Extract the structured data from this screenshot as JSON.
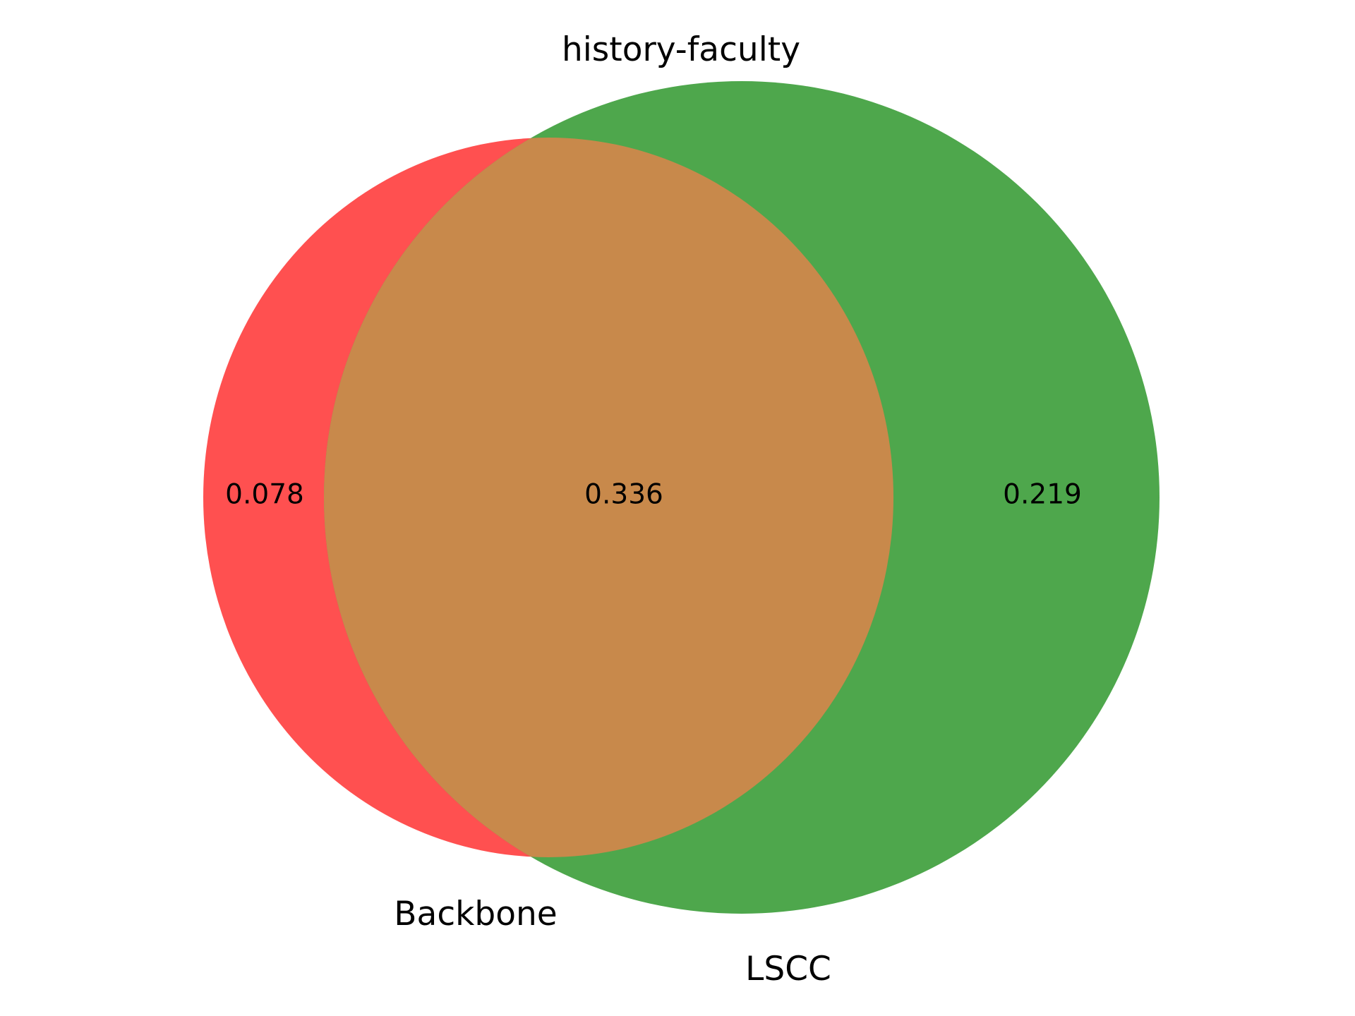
{
  "title": "history-faculty",
  "sets": [
    {
      "id": "A",
      "name": "Backbone",
      "color": "#ff5050"
    },
    {
      "id": "B",
      "name": "LSCC",
      "color": "#4ea74c"
    }
  ],
  "intersection_color": "#c8894b",
  "chart_data": {
    "type": "venn2",
    "title": "history-faculty",
    "sets": [
      "Backbone",
      "LSCC"
    ],
    "regions": {
      "only_Backbone": 0.078,
      "Backbone_and_LSCC": 0.336,
      "only_LSCC": 0.219
    },
    "region_labels": [
      "0.078",
      "0.336",
      "0.219"
    ]
  }
}
